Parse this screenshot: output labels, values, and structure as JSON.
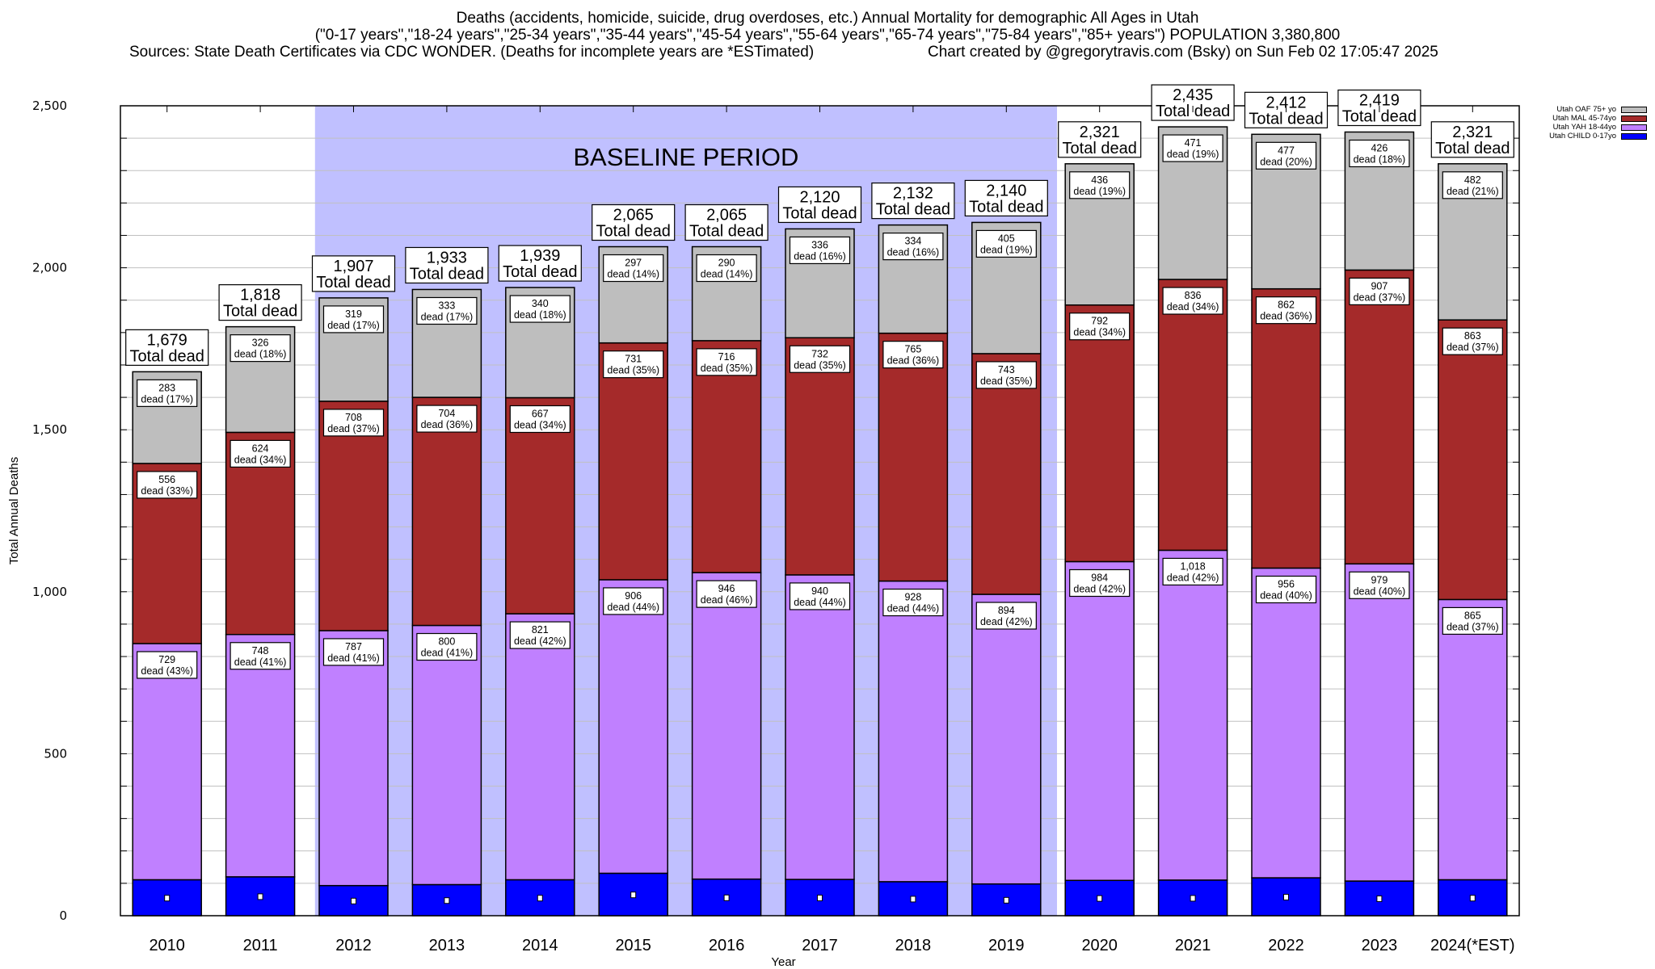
{
  "header": {
    "title_line1": "Deaths (accidents, homicide, suicide, drug overdoses, etc.) Annual Mortality for demographic All Ages in Utah",
    "title_line2": "(\"0-17 years\",\"18-24 years\",\"25-34 years\",\"35-44 years\",\"45-54 years\",\"55-64 years\",\"65-74 years\",\"75-84 years\",\"85+ years\") POPULATION 3,380,800",
    "title_line3_left": "Sources: State Death Certificates via CDC WONDER. (Deaths for incomplete years are *ESTimated)",
    "title_line3_right": "Chart created by @gregorytravis.com (Bsky) on Sun Feb 02 17:05:47 2025"
  },
  "chart_data": {
    "type": "bar",
    "stacked": true,
    "title": "Deaths (accidents, homicide, suicide, drug overdoses, etc.) Annual Mortality for demographic All Ages in Utah",
    "xlabel": "Year",
    "ylabel": "Total Annual Deaths",
    "ylim": [
      0,
      2500
    ],
    "yticks": [
      0,
      500,
      1000,
      1500,
      2000,
      2500
    ],
    "ytick_labels": [
      "0",
      "500",
      "1,000",
      "1,500",
      "2,000",
      "2,500"
    ],
    "minor_grid_step": 100,
    "grid": true,
    "legend_position": "top-right",
    "categories": [
      "2010",
      "2011",
      "2012",
      "2013",
      "2014",
      "2015",
      "2016",
      "2017",
      "2018",
      "2019",
      "2020",
      "2021",
      "2022",
      "2023",
      "2024(*EST)"
    ],
    "series": [
      {
        "name": "Utah CHILD 0-17yo",
        "color": "#0000ff",
        "values": [
          111,
          120,
          93,
          96,
          111,
          131,
          113,
          112,
          105,
          98,
          109,
          110,
          117,
          107,
          111
        ]
      },
      {
        "name": "Utah YAH 18-44yo",
        "color": "#c080ff",
        "values": [
          729,
          748,
          787,
          800,
          821,
          906,
          946,
          940,
          928,
          894,
          984,
          1018,
          956,
          979,
          865
        ],
        "labels": [
          "729",
          "748",
          "787",
          "800",
          "821",
          "906",
          "946",
          "940",
          "928",
          "894",
          "984",
          "1,018",
          "956",
          "979",
          "865"
        ],
        "pct": [
          "43%",
          "41%",
          "41%",
          "41%",
          "42%",
          "44%",
          "46%",
          "44%",
          "44%",
          "42%",
          "42%",
          "42%",
          "40%",
          "40%",
          "37%"
        ]
      },
      {
        "name": "Utah MAL 45-74yo",
        "color": "#a52a2a",
        "values": [
          556,
          624,
          708,
          704,
          667,
          731,
          716,
          732,
          765,
          743,
          792,
          836,
          862,
          907,
          863
        ],
        "pct": [
          "33%",
          "34%",
          "37%",
          "36%",
          "34%",
          "35%",
          "35%",
          "35%",
          "36%",
          "35%",
          "34%",
          "34%",
          "36%",
          "37%",
          "37%"
        ]
      },
      {
        "name": "Utah OAF 75+ yo",
        "color": "#bebebe",
        "values": [
          283,
          326,
          319,
          333,
          340,
          297,
          290,
          336,
          334,
          405,
          436,
          471,
          477,
          426,
          482
        ],
        "pct": [
          "17%",
          "18%",
          "17%",
          "17%",
          "18%",
          "14%",
          "14%",
          "16%",
          "16%",
          "19%",
          "19%",
          "19%",
          "20%",
          "18%",
          "21%"
        ]
      }
    ],
    "totals": [
      1679,
      1818,
      1907,
      1933,
      1939,
      2065,
      2065,
      2120,
      2132,
      2140,
      2321,
      2435,
      2412,
      2419,
      2321
    ],
    "total_labels": [
      "1,679",
      "1,818",
      "1,907",
      "1,933",
      "1,939",
      "2,065",
      "2,065",
      "2,120",
      "2,132",
      "2,140",
      "2,321",
      "2,435",
      "2,412",
      "2,419",
      "2,321"
    ],
    "total_suffix": "Total dead",
    "segment_suffix": "dead",
    "annotations": [
      {
        "text": "BASELINE PERIOD",
        "span_from": "2012",
        "span_to": "2019",
        "color": "#c0c0ff"
      }
    ]
  },
  "legend": {
    "items": [
      {
        "label": "Utah OAF 75+ yo",
        "color": "#bebebe"
      },
      {
        "label": "Utah MAL 45-74yo",
        "color": "#a52a2a"
      },
      {
        "label": "Utah YAH 18-44yo",
        "color": "#c080ff"
      },
      {
        "label": "Utah CHILD 0-17yo",
        "color": "#0000ff"
      }
    ]
  }
}
